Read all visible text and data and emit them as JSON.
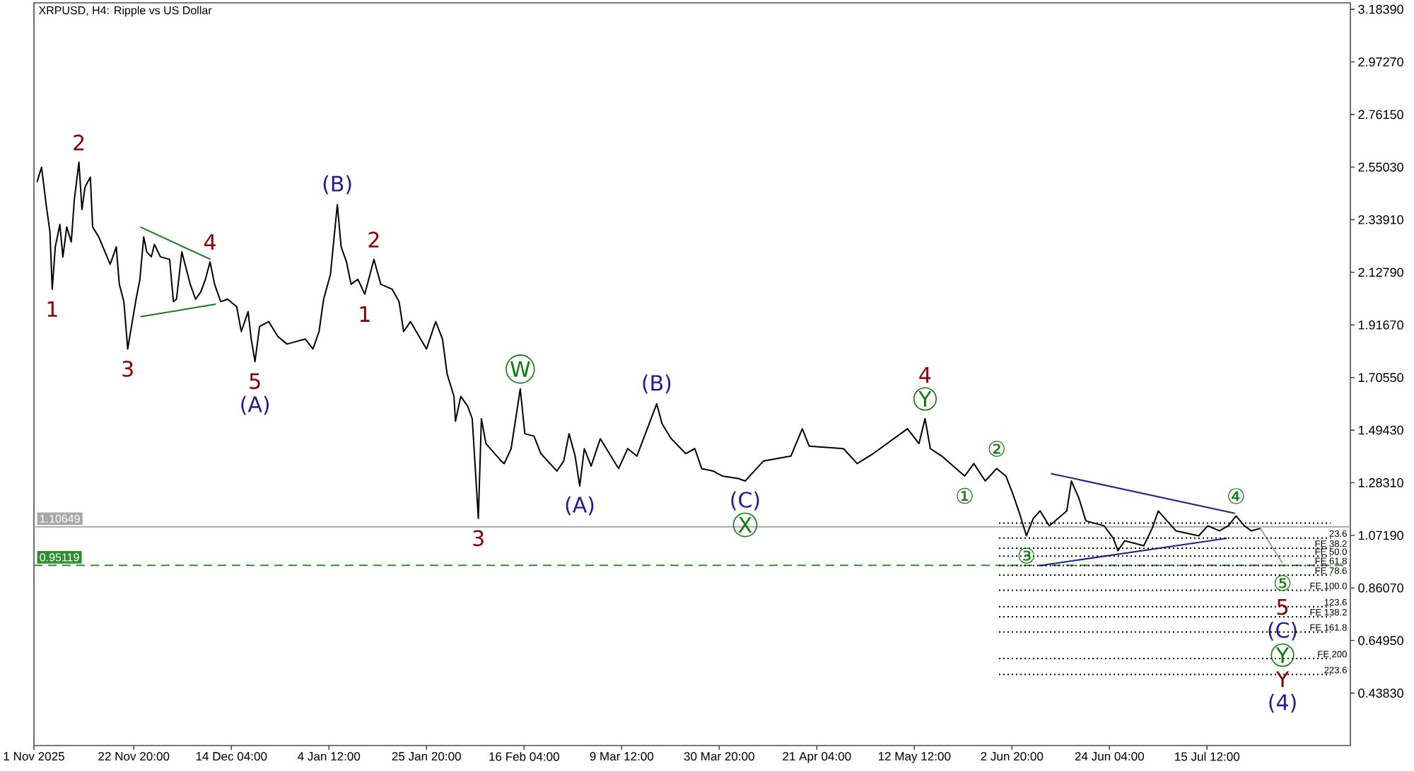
{
  "chart_data": {
    "type": "line",
    "title": "XRPUSD, H4: Ripple vs US Dollar",
    "xlim": [
      "2025-11-01T00:00",
      "2026-08-15T20:00"
    ],
    "xticks": [
      {
        "value": "2025-11-01T00:00",
        "label": "1 Nov 2025"
      },
      {
        "value": "2025-11-22T20:00",
        "label": "22 Nov 20:00"
      },
      {
        "value": "2025-12-14T04:00",
        "label": "14 Dec 04:00"
      },
      {
        "value": "2026-01-04T12:00",
        "label": "4 Jan 12:00"
      },
      {
        "value": "2026-01-25T20:00",
        "label": "25 Jan 20:00"
      },
      {
        "value": "2026-02-16T04:00",
        "label": "16 Feb 04:00"
      },
      {
        "value": "2026-03-09T12:00",
        "label": "9 Mar 12:00"
      },
      {
        "value": "2026-03-30T20:00",
        "label": "30 Mar 20:00"
      },
      {
        "value": "2026-04-21T04:00",
        "label": "21 Apr 04:00"
      },
      {
        "value": "2026-05-12T12:00",
        "label": "12 May 12:00"
      },
      {
        "value": "2026-06-02T20:00",
        "label": "2 Jun 20:00"
      },
      {
        "value": "2026-06-24T04:00",
        "label": "24 Jun 04:00"
      },
      {
        "value": "2026-07-15T12:00",
        "label": "15 Jul 12:00"
      }
    ],
    "ylim": [
      0.228,
      3.21
    ],
    "yticks": [
      {
        "value": 3.1839,
        "label": "3.18390"
      },
      {
        "value": 2.9727,
        "label": "2.97270"
      },
      {
        "value": 2.7615,
        "label": "2.76150"
      },
      {
        "value": 2.5503,
        "label": "2.55030"
      },
      {
        "value": 2.3391,
        "label": "2.33910"
      },
      {
        "value": 2.1279,
        "label": "2.12790"
      },
      {
        "value": 1.9167,
        "label": "1.91670"
      },
      {
        "value": 1.7055,
        "label": "1.70550"
      },
      {
        "value": 1.4943,
        "label": "1.49430"
      },
      {
        "value": 1.2831,
        "label": "1.28310"
      },
      {
        "value": 1.0719,
        "label": "1.07190"
      },
      {
        "value": 0.8607,
        "label": "0.86070"
      },
      {
        "value": 0.6495,
        "label": "0.64950"
      },
      {
        "value": 0.4383,
        "label": "0.43830"
      }
    ],
    "series": [
      {
        "color": "#000000",
        "x": [
          "2025-11-01T16:00",
          "2025-11-02T16:00",
          "2025-11-03T16:00",
          "2025-11-04T12:00",
          "2025-11-05T00:00",
          "2025-11-05T16:00",
          "2025-11-06T16:00",
          "2025-11-07T08:00",
          "2025-11-08T04:00",
          "2025-11-09T04:00",
          "2025-11-09T20:00",
          "2025-11-10T20:00",
          "2025-11-11T12:00",
          "2025-11-12T04:00",
          "2025-11-13T08:00",
          "2025-11-13T20:00",
          "2025-11-15T04:00",
          "2025-11-17T16:00",
          "2025-11-19T00:00",
          "2025-11-19T16:00",
          "2025-11-20T16:00",
          "2025-11-21T12:00",
          "2025-11-22T12:00",
          "2025-11-23T08:00",
          "2025-11-24T04:00",
          "2025-11-25T00:00",
          "2025-11-25T16:00",
          "2025-11-26T16:00",
          "2025-11-27T08:00",
          "2025-11-28T16:00",
          "2025-11-30T16:00",
          "2025-12-01T12:00",
          "2025-12-02T04:00",
          "2025-12-03T08:00",
          "2025-12-05T04:00",
          "2025-12-06T08:00",
          "2025-12-07T12:00",
          "2025-12-08T12:00",
          "2025-12-09T12:00",
          "2025-12-10T12:00",
          "2025-12-11T20:00",
          "2025-12-13T08:00",
          "2025-12-15T08:00",
          "2025-12-16T08:00",
          "2025-12-17T20:00",
          "2025-12-18T12:00",
          "2025-12-19T08:00",
          "2025-12-20T08:00",
          "2025-12-22T08:00",
          "2025-12-24T08:00",
          "2025-12-26T08:00",
          "2025-12-30T08:00",
          "2026-01-01T00:00",
          "2026-01-02T08:00",
          "2026-01-03T08:00",
          "2026-01-04T20:00",
          "2026-01-06T08:00",
          "2026-01-07T04:00",
          "2026-01-08T08:00",
          "2026-01-09T08:00",
          "2026-01-10T20:00",
          "2026-01-12T08:00",
          "2026-01-14T08:00",
          "2026-01-15T20:00",
          "2026-01-18T08:00",
          "2026-01-19T20:00",
          "2026-01-20T20:00",
          "2026-01-22T08:00",
          "2026-01-25T20:00",
          "2026-01-27T20:00",
          "2026-01-29T08:00",
          "2026-01-30T08:00",
          "2026-01-31T20:00",
          "2026-02-01T04:00",
          "2026-02-02T08:00",
          "2026-02-03T20:00",
          "2026-02-04T20:00",
          "2026-02-06T04:00",
          "2026-02-06T20:00",
          "2026-02-07T20:00",
          "2026-02-11T04:00",
          "2026-02-11T20:00",
          "2026-02-13T08:00",
          "2026-02-15T08:00",
          "2026-02-16T08:00",
          "2026-02-18T08:00",
          "2026-02-19T20:00",
          "2026-02-23T08:00",
          "2026-02-24T20:00",
          "2026-02-26T00:00",
          "2026-02-27T08:00",
          "2026-02-28T08:00",
          "2026-03-01T08:00",
          "2026-03-02T20:00",
          "2026-03-04T20:00",
          "2026-03-08T20:00",
          "2026-03-10T20:00",
          "2026-03-12T20:00",
          "2026-03-17T04:00",
          "2026-03-18T08:00",
          "2026-03-20T08:00",
          "2026-03-23T12:00",
          "2026-03-25T12:00",
          "2026-03-27T00:00",
          "2026-03-29T12:00",
          "2026-03-31T12:00",
          "2026-04-04T00:00",
          "2026-04-05T12:00",
          "2026-04-07T12:00",
          "2026-04-09T12:00",
          "2026-04-15T12:00",
          "2026-04-18T00:00",
          "2026-04-19T12:00",
          "2026-04-27T00:00",
          "2026-04-30T00:00",
          "2026-05-03T12:00",
          "2026-05-11T00:00",
          "2026-05-13T12:00",
          "2026-05-14T20:00",
          "2026-05-16T00:00",
          "2026-05-18T12:00",
          "2026-05-23T12:00",
          "2026-05-25T12:00",
          "2026-05-28T00:00",
          "2026-05-30T12:00",
          "2026-06-01T12:00",
          "2026-06-03T00:00",
          "2026-06-04T12:00",
          "2026-06-06T00:00",
          "2026-06-07T12:00",
          "2026-06-09T00:00",
          "2026-06-11T00:00",
          "2026-06-14T20:00",
          "2026-06-15T20:00",
          "2026-06-17T12:00",
          "2026-06-19T00:00",
          "2026-06-23T00:00",
          "2026-06-25T00:00",
          "2026-06-26T00:00",
          "2026-06-27T12:00",
          "2026-07-01T16:00",
          "2026-07-03T12:00",
          "2026-07-04T20:00",
          "2026-07-08T16:00",
          "2026-07-13T16:00",
          "2026-07-15T16:00",
          "2026-07-18T04:00",
          "2026-07-20T04:00",
          "2026-07-21T20:00",
          "2026-07-23T16:00",
          "2026-07-25T04:00",
          "2026-07-27T04:00"
        ],
        "values": [
          2.49,
          2.55,
          2.4,
          2.29,
          2.06,
          2.23,
          2.32,
          2.19,
          2.31,
          2.25,
          2.42,
          2.57,
          2.38,
          2.47,
          2.51,
          2.31,
          2.27,
          2.16,
          2.23,
          2.08,
          2.01,
          1.82,
          1.93,
          2.02,
          2.1,
          2.27,
          2.21,
          2.19,
          2.24,
          2.19,
          2.18,
          2.01,
          2.02,
          2.21,
          2.08,
          2.02,
          2.05,
          2.1,
          2.17,
          2.08,
          2.01,
          2.02,
          1.99,
          1.89,
          1.97,
          1.86,
          1.77,
          1.91,
          1.93,
          1.87,
          1.84,
          1.86,
          1.82,
          1.89,
          2.02,
          2.12,
          2.4,
          2.23,
          2.17,
          2.08,
          2.1,
          2.04,
          2.18,
          2.08,
          2.06,
          2.01,
          1.89,
          1.93,
          1.82,
          1.93,
          1.86,
          1.72,
          1.63,
          1.53,
          1.63,
          1.59,
          1.54,
          1.14,
          1.54,
          1.44,
          1.37,
          1.36,
          1.42,
          1.66,
          1.48,
          1.47,
          1.4,
          1.33,
          1.37,
          1.48,
          1.39,
          1.27,
          1.42,
          1.35,
          1.46,
          1.34,
          1.42,
          1.39,
          1.6,
          1.52,
          1.46,
          1.4,
          1.42,
          1.34,
          1.33,
          1.31,
          1.3,
          1.29,
          1.33,
          1.37,
          1.39,
          1.5,
          1.43,
          1.42,
          1.36,
          1.4,
          1.5,
          1.44,
          1.54,
          1.42,
          1.39,
          1.31,
          1.36,
          1.29,
          1.34,
          1.31,
          1.24,
          1.16,
          1.07,
          1.14,
          1.17,
          1.11,
          1.17,
          1.29,
          1.22,
          1.13,
          1.11,
          1.06,
          1.01,
          1.05,
          1.03,
          1.1,
          1.17,
          1.09,
          1.07,
          1.11,
          1.09,
          1.11,
          1.15,
          1.11,
          1.09,
          1.1
        ]
      },
      {
        "color": "#1b7a1b",
        "x": [
          "2025-11-24T06:00",
          "2025-12-09T14:00"
        ],
        "values": [
          2.31,
          2.18
        ]
      },
      {
        "color": "#1b7a1b",
        "x": [
          "2025-11-24T06:00",
          "2025-12-10T18:00"
        ],
        "values": [
          1.95,
          2.0
        ]
      },
      {
        "color": "#22228c",
        "x": [
          "2026-06-11T08:00",
          "2026-07-21T14:00"
        ],
        "values": [
          1.32,
          1.16
        ]
      },
      {
        "color": "#22228c",
        "x": [
          "2026-06-08T20:00",
          "2026-07-19T20:00"
        ],
        "values": [
          0.95,
          1.06
        ]
      },
      {
        "color": "#a0a0a0",
        "x": [
          "2026-07-27T04:00",
          "2026-08-01T00:00"
        ],
        "values": [
          1.1,
          0.96
        ]
      },
      {
        "color": "#000000",
        "line_style": "dotted",
        "x": [
          "2026-05-31T00:00",
          "2026-08-11T12:00"
        ],
        "values": [
          1.121,
          1.121
        ]
      },
      {
        "name": "23.6",
        "color": "#000000",
        "line_style": "dotted",
        "x": [
          "2026-05-31T00:00",
          "2026-08-11T12:00"
        ],
        "values": [
          1.061,
          1.061
        ]
      },
      {
        "name": "FE 38.2",
        "color": "#000000",
        "line_style": "dotted",
        "x": [
          "2026-05-31T00:00",
          "2026-08-11T12:00"
        ],
        "values": [
          1.02,
          1.02
        ]
      },
      {
        "name": "FE 50.0",
        "color": "#000000",
        "line_style": "dotted",
        "x": [
          "2026-05-31T00:00",
          "2026-08-11T12:00"
        ],
        "values": [
          0.988,
          0.988
        ]
      },
      {
        "name": "FE 61.8",
        "color": "#000000",
        "line_style": "dotted",
        "x": [
          "2026-05-31T00:00",
          "2026-08-11T12:00"
        ],
        "values": [
          0.951,
          0.951
        ]
      },
      {
        "name": "FE 78.6",
        "color": "#000000",
        "line_style": "dotted",
        "x": [
          "2026-05-31T00:00",
          "2026-08-11T12:00"
        ],
        "values": [
          0.912,
          0.912
        ]
      },
      {
        "name": "FE 100.0",
        "color": "#000000",
        "line_style": "dotted",
        "x": [
          "2026-05-31T00:00",
          "2026-08-11T12:00"
        ],
        "values": [
          0.851,
          0.851
        ]
      },
      {
        "name": "123.6",
        "color": "#000000",
        "line_style": "dotted",
        "x": [
          "2026-05-31T00:00",
          "2026-08-11T12:00"
        ],
        "values": [
          0.785,
          0.785
        ]
      },
      {
        "name": "FE 138.2",
        "color": "#000000",
        "line_style": "dotted",
        "x": [
          "2026-05-31T00:00",
          "2026-08-11T12:00"
        ],
        "values": [
          0.745,
          0.745
        ]
      },
      {
        "name": "FE 161.8",
        "color": "#000000",
        "line_style": "dotted",
        "x": [
          "2026-05-31T00:00",
          "2026-08-11T12:00"
        ],
        "values": [
          0.684,
          0.684
        ]
      },
      {
        "name": "FE 200",
        "color": "#000000",
        "line_style": "dotted",
        "x": [
          "2026-05-31T00:00",
          "2026-08-11T12:00"
        ],
        "values": [
          0.577,
          0.577
        ]
      },
      {
        "name": "223.6",
        "color": "#000000",
        "line_style": "dotted",
        "x": [
          "2026-05-31T00:00",
          "2026-08-11T12:00"
        ],
        "values": [
          0.513,
          0.513
        ]
      }
    ],
    "ref_lines": [
      {
        "axis": "y",
        "value": 1.10649,
        "label": "1.10649",
        "color": "#a8a8a8",
        "line_style": "solid"
      },
      {
        "axis": "y",
        "value": 0.95119,
        "label": "0.95119",
        "color": "#2f8f2f",
        "line_style": "dashed"
      }
    ],
    "annotations": [
      {
        "text": "1",
        "x": "2025-11-05T00:00",
        "y": 2.06
      },
      {
        "text": "2",
        "x": "2025-11-10T20:00",
        "y": 2.57
      },
      {
        "text": "3",
        "x": "2025-11-21T12:00",
        "y": 1.82
      },
      {
        "text": "4",
        "x": "2025-12-09T12:00",
        "y": 2.17
      },
      {
        "text": "5",
        "x": "2025-12-19T08:00",
        "y": 1.77
      },
      {
        "text": "(A)",
        "x": "2025-12-19T08:00",
        "y": 1.77
      },
      {
        "text": "(B)",
        "x": "2026-01-06T08:00",
        "y": 2.4
      },
      {
        "text": "1",
        "x": "2026-01-12T08:00",
        "y": 2.04
      },
      {
        "text": "2",
        "x": "2026-01-14T08:00",
        "y": 2.18
      },
      {
        "text": "3",
        "x": "2026-02-06T04:00",
        "y": 1.14
      },
      {
        "text": "W",
        "x": "2026-02-15T08:00",
        "y": 1.66
      },
      {
        "text": "(A)",
        "x": "2026-02-28T08:00",
        "y": 1.27
      },
      {
        "text": "(B)",
        "x": "2026-03-17T04:00",
        "y": 1.6
      },
      {
        "text": "(C)",
        "x": "2026-04-05T12:00",
        "y": 1.29
      },
      {
        "text": "X",
        "x": "2026-04-05T12:00",
        "y": 1.29
      },
      {
        "text": "Y",
        "x": "2026-05-14T20:00",
        "y": 1.54
      },
      {
        "text": "4",
        "x": "2026-05-14T20:00",
        "y": 1.54
      },
      {
        "text": "①",
        "x": "2026-05-23T12:00",
        "y": 1.31
      },
      {
        "text": "②",
        "x": "2026-05-30T12:00",
        "y": 1.34
      },
      {
        "text": "③",
        "x": "2026-06-06T00:00",
        "y": 1.07
      },
      {
        "text": "④",
        "x": "2026-07-21T20:00",
        "y": 1.15
      },
      {
        "text": "⑤",
        "x": "2026-08-01T00:00",
        "y": 0.96
      },
      {
        "text": "5",
        "x": "2026-08-01T00:00",
        "y": 0.96
      },
      {
        "text": "(C)",
        "x": "2026-08-01T00:00",
        "y": 0.96
      },
      "Y",
      "Y",
      "(4)"
    ]
  }
}
